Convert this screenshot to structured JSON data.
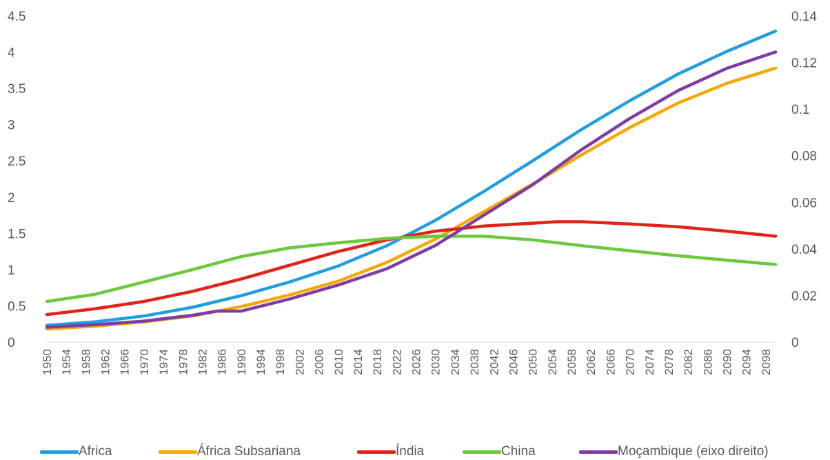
{
  "chart_data": {
    "type": "line",
    "title": "",
    "xlabel": "",
    "ylabel": "",
    "x_range": [
      1950,
      2100
    ],
    "x_tick_labels": [
      "1950",
      "1954",
      "1958",
      "1962",
      "1966",
      "1970",
      "1974",
      "1978",
      "1982",
      "1986",
      "1990",
      "1994",
      "1998",
      "2002",
      "2006",
      "2010",
      "2014",
      "2018",
      "2022",
      "2026",
      "2030",
      "2034",
      "2038",
      "2042",
      "2046",
      "2050",
      "2054",
      "2058",
      "2062",
      "2066",
      "2070",
      "2074",
      "2078",
      "2082",
      "2086",
      "2090",
      "2094",
      "2098"
    ],
    "y_left": {
      "range": [
        0,
        4.5
      ],
      "tick_labels": [
        "0",
        "0.5",
        "1",
        "1.5",
        "2",
        "2.5",
        "3",
        "3.5",
        "4",
        "4.5"
      ]
    },
    "y_right": {
      "range": [
        0,
        0.14
      ],
      "tick_labels": [
        "0",
        "0.02",
        "0.04",
        "0.06",
        "0.08",
        "0.1",
        "0.12",
        "0.14"
      ]
    },
    "grid": false,
    "legend_position": "bottom",
    "series": [
      {
        "name": "Africa",
        "axis": "left",
        "color": "#1F9FE0",
        "points": [
          [
            1950,
            0.23
          ],
          [
            1960,
            0.28
          ],
          [
            1970,
            0.36
          ],
          [
            1980,
            0.48
          ],
          [
            1990,
            0.64
          ],
          [
            2000,
            0.83
          ],
          [
            2010,
            1.05
          ],
          [
            2020,
            1.33
          ],
          [
            2030,
            1.68
          ],
          [
            2040,
            2.08
          ],
          [
            2050,
            2.5
          ],
          [
            2060,
            2.93
          ],
          [
            2070,
            3.33
          ],
          [
            2080,
            3.7
          ],
          [
            2090,
            4.01
          ],
          [
            2100,
            4.29
          ]
        ]
      },
      {
        "name": "África Subsariana",
        "axis": "left",
        "color": "#F5A800",
        "points": [
          [
            1950,
            0.18
          ],
          [
            1960,
            0.22
          ],
          [
            1970,
            0.28
          ],
          [
            1980,
            0.36
          ],
          [
            1990,
            0.49
          ],
          [
            2000,
            0.65
          ],
          [
            2010,
            0.84
          ],
          [
            2020,
            1.1
          ],
          [
            2030,
            1.42
          ],
          [
            2040,
            1.8
          ],
          [
            2050,
            2.18
          ],
          [
            2060,
            2.58
          ],
          [
            2070,
            2.96
          ],
          [
            2080,
            3.3
          ],
          [
            2090,
            3.57
          ],
          [
            2100,
            3.78
          ]
        ]
      },
      {
        "name": "Índia",
        "axis": "left",
        "color": "#E02418",
        "points": [
          [
            1950,
            0.38
          ],
          [
            1960,
            0.46
          ],
          [
            1970,
            0.56
          ],
          [
            1980,
            0.7
          ],
          [
            1990,
            0.87
          ],
          [
            2000,
            1.06
          ],
          [
            2010,
            1.25
          ],
          [
            2020,
            1.41
          ],
          [
            2030,
            1.53
          ],
          [
            2040,
            1.6
          ],
          [
            2050,
            1.64
          ],
          [
            2055,
            1.66
          ],
          [
            2060,
            1.66
          ],
          [
            2070,
            1.63
          ],
          [
            2080,
            1.59
          ],
          [
            2090,
            1.53
          ],
          [
            2100,
            1.46
          ]
        ]
      },
      {
        "name": "China",
        "axis": "left",
        "color": "#6CC83C",
        "points": [
          [
            1950,
            0.56
          ],
          [
            1960,
            0.66
          ],
          [
            1970,
            0.83
          ],
          [
            1980,
            1.0
          ],
          [
            1990,
            1.18
          ],
          [
            2000,
            1.3
          ],
          [
            2010,
            1.37
          ],
          [
            2020,
            1.43
          ],
          [
            2030,
            1.46
          ],
          [
            2040,
            1.46
          ],
          [
            2050,
            1.41
          ],
          [
            2060,
            1.33
          ],
          [
            2070,
            1.26
          ],
          [
            2080,
            1.19
          ],
          [
            2090,
            1.13
          ],
          [
            2100,
            1.07
          ]
        ]
      },
      {
        "name": "Moçambique (eixo direito)",
        "axis": "right",
        "color": "#7D3CA6",
        "points": [
          [
            1950,
            0.0064
          ],
          [
            1960,
            0.0075
          ],
          [
            1970,
            0.009
          ],
          [
            1980,
            0.0115
          ],
          [
            1985,
            0.0133
          ],
          [
            1990,
            0.0133
          ],
          [
            2000,
            0.0185
          ],
          [
            2010,
            0.0245
          ],
          [
            2020,
            0.0315
          ],
          [
            2030,
            0.0415
          ],
          [
            2040,
            0.0545
          ],
          [
            2050,
            0.0675
          ],
          [
            2060,
            0.0825
          ],
          [
            2070,
            0.096
          ],
          [
            2080,
            0.108
          ],
          [
            2090,
            0.1175
          ],
          [
            2100,
            0.1245
          ]
        ]
      }
    ]
  }
}
